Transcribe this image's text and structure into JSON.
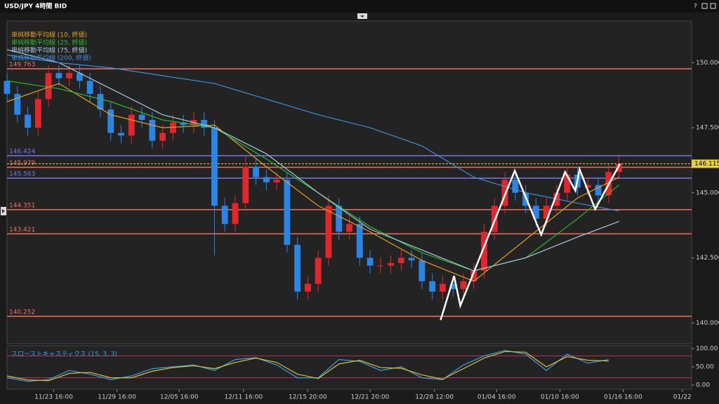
{
  "window": {
    "title": "USD/JPY 4時間 BID"
  },
  "chart_data": [
    {
      "type": "candlestick",
      "xlim": [
        0,
        66
      ],
      "ylim": [
        139.2,
        151.6
      ],
      "yticks": [
        {
          "value": 150,
          "label": "150.000"
        },
        {
          "value": 147.5,
          "label": "147.500"
        },
        {
          "value": 145,
          "label": "145.000"
        },
        {
          "value": 142.5,
          "label": "142.500"
        },
        {
          "value": 140,
          "label": "140.000"
        }
      ],
      "xticks": [
        {
          "value": 4.5,
          "label": "11/23 16:00"
        },
        {
          "value": 10.6,
          "label": "11/29 16:00"
        },
        {
          "value": 16.6,
          "label": "12/05 16:00"
        },
        {
          "value": 22.8,
          "label": "12/11 16:00"
        },
        {
          "value": 29,
          "label": "12/15 20:00"
        },
        {
          "value": 35,
          "label": "12/21 20:00"
        },
        {
          "value": 41.2,
          "label": "12/28 12:00"
        },
        {
          "value": 47.2,
          "label": "01/04 16:00"
        },
        {
          "value": 53.3,
          "label": "01/10 16:00"
        },
        {
          "value": 59.4,
          "label": "01/16 16:00"
        },
        {
          "value": 65.1,
          "label": "01/22"
        }
      ],
      "up_color": "#e3262c",
      "down_color": "#2a86e6",
      "open": [
        149.3,
        148.8,
        148.0,
        147.5,
        148.6,
        149.6,
        149.4,
        149.6,
        149.3,
        148.8,
        148.2,
        147.3,
        147.2,
        148.0,
        147.8,
        147.0,
        147.3,
        147.7,
        147.6,
        147.8,
        147.5,
        144.5,
        143.8,
        144.6,
        146.0,
        145.6,
        145.4,
        145.5,
        143.0,
        141.2,
        141.5,
        142.5,
        144.5,
        143.5,
        143.8,
        142.5,
        142.2,
        142.2,
        142.3,
        142.5,
        142.4,
        141.6,
        141.2,
        141.5,
        141.3,
        141.6,
        142.0,
        143.5,
        144.5,
        145.5,
        145.0,
        144.5,
        144.0,
        144.5,
        145.0,
        145.7,
        145.2,
        145.3,
        144.9,
        145.8
      ],
      "high": [
        149.6,
        149.1,
        148.3,
        148.9,
        149.9,
        149.9,
        149.9,
        149.9,
        149.6,
        149.1,
        148.5,
        147.6,
        148.3,
        148.3,
        148.1,
        147.6,
        148.0,
        148.0,
        148.1,
        148.1,
        147.8,
        144.8,
        144.9,
        146.4,
        146.3,
        145.9,
        145.8,
        145.8,
        143.3,
        141.8,
        142.8,
        144.9,
        144.8,
        144.1,
        144.1,
        142.8,
        142.5,
        142.6,
        142.8,
        142.8,
        142.7,
        141.9,
        141.8,
        141.8,
        141.9,
        142.3,
        143.8,
        144.8,
        145.8,
        145.8,
        145.3,
        144.8,
        144.8,
        145.3,
        146.0,
        146.0,
        145.6,
        145.6,
        146.1,
        146.4
      ],
      "low": [
        148.5,
        147.7,
        147.2,
        147.2,
        148.3,
        149.1,
        149.1,
        149.0,
        148.5,
        147.9,
        147.0,
        146.9,
        146.9,
        147.5,
        146.7,
        146.7,
        147.0,
        147.3,
        147.3,
        147.2,
        142.6,
        143.5,
        143.5,
        144.3,
        145.3,
        145.1,
        145.1,
        142.7,
        140.9,
        140.9,
        141.2,
        142.2,
        143.2,
        143.2,
        142.2,
        141.9,
        141.9,
        141.9,
        142.0,
        142.1,
        141.3,
        140.9,
        140.9,
        141.0,
        141.0,
        141.3,
        141.7,
        143.2,
        144.2,
        144.7,
        144.2,
        143.7,
        143.7,
        144.2,
        144.7,
        144.9,
        144.9,
        144.6,
        144.6,
        145.5
      ],
      "close": [
        148.8,
        148.0,
        147.5,
        148.6,
        149.6,
        149.4,
        149.6,
        149.3,
        148.8,
        148.2,
        147.3,
        147.2,
        148.0,
        147.8,
        147.0,
        147.3,
        147.7,
        147.6,
        147.8,
        147.5,
        144.5,
        143.8,
        144.6,
        146.0,
        145.6,
        145.4,
        145.5,
        143.0,
        141.2,
        141.5,
        142.5,
        144.5,
        143.5,
        143.8,
        142.5,
        142.2,
        142.2,
        142.3,
        142.5,
        142.4,
        141.6,
        141.2,
        141.5,
        141.3,
        141.6,
        142.0,
        143.5,
        144.5,
        145.5,
        145.0,
        144.5,
        144.0,
        144.5,
        145.0,
        145.7,
        145.2,
        145.3,
        144.9,
        145.8,
        146.1
      ],
      "series": [
        {
          "name": "単純移動平均線 (10, 終値)",
          "color": "#e0a020",
          "x": [
            0,
            5,
            10,
            15,
            20,
            25,
            30,
            35,
            40,
            45,
            50,
            55,
            59
          ],
          "values": [
            148.5,
            149.2,
            148.0,
            147.5,
            147.6,
            146.0,
            144.5,
            143.5,
            142.4,
            141.6,
            143.2,
            144.8,
            145.6
          ]
        },
        {
          "name": "単純移動平均線 (25, 終値)",
          "color": "#2fb82f",
          "x": [
            0,
            5,
            10,
            15,
            20,
            25,
            30,
            35,
            40,
            45,
            50,
            55,
            59
          ],
          "values": [
            149.3,
            149.0,
            148.5,
            147.8,
            147.5,
            146.3,
            145.0,
            143.7,
            142.7,
            142.0,
            142.5,
            144.0,
            145.3
          ]
        },
        {
          "name": "単純移動平均線 (75, 終値)",
          "color": "#a9c8e0",
          "x": [
            0,
            5,
            10,
            15,
            20,
            25,
            30,
            35,
            40,
            45,
            50,
            55,
            59
          ],
          "values": [
            150.5,
            150.0,
            149.0,
            148.0,
            147.5,
            146.5,
            145.0,
            143.6,
            142.8,
            142.0,
            142.5,
            143.3,
            143.9
          ]
        },
        {
          "name": "単純移動平均線 (200, 終値)",
          "color": "#3f8fd6",
          "x": [
            0,
            5,
            10,
            15,
            20,
            25,
            30,
            35,
            40,
            45,
            50,
            55,
            59
          ],
          "values": [
            150.3,
            150.0,
            149.8,
            149.5,
            149.2,
            148.6,
            148.0,
            147.5,
            146.8,
            145.6,
            145.0,
            144.6,
            144.3
          ]
        }
      ],
      "levels": [
        {
          "value": 149.763,
          "color": "#f07060"
        },
        {
          "value": 146.424,
          "color": "#7878e8"
        },
        {
          "value": 145.979,
          "color": "#f07060"
        },
        {
          "value": 145.563,
          "color": "#7878e8"
        },
        {
          "value": 144.351,
          "color": "#f07060"
        },
        {
          "value": 143.421,
          "color": "#f07060"
        },
        {
          "value": 140.252,
          "color": "#f07060"
        }
      ],
      "current_price": {
        "value": 146.115,
        "color": "#e8d040"
      },
      "annotation_line": {
        "color": "#ffffff",
        "x": [
          41.8,
          43.1,
          43.7,
          48.95,
          51.5,
          53.8,
          54.8,
          55.2,
          56.7,
          59.1
        ],
        "values": [
          140.11,
          141.8,
          140.66,
          145.85,
          143.39,
          145.8,
          145.08,
          145.9,
          144.37,
          146.12
        ]
      }
    },
    {
      "type": "line",
      "title": "スローストキャスティクス (15, 3, 3)",
      "xlim": [
        0,
        66
      ],
      "ylim": [
        -11.5,
        107.7
      ],
      "yticks": [
        {
          "value": 100,
          "label": "100.00"
        },
        {
          "value": 50,
          "label": "50.00"
        },
        {
          "value": 0,
          "label": "0.00"
        }
      ],
      "levels": [
        {
          "value": 80,
          "color": "#c0306a"
        },
        {
          "value": 20,
          "color": "#c0306a"
        }
      ],
      "series": [
        {
          "color": "#3aa0e8",
          "x": [
            0,
            2,
            4,
            6,
            8,
            10,
            12,
            14,
            16,
            18,
            20,
            22,
            24,
            26,
            28,
            30,
            32,
            34,
            36,
            38,
            40,
            42,
            44,
            46,
            48,
            50,
            52,
            54,
            56,
            58
          ],
          "values": [
            20,
            10,
            15,
            40,
            30,
            15,
            25,
            45,
            50,
            55,
            40,
            70,
            75,
            55,
            20,
            20,
            70,
            65,
            40,
            50,
            20,
            15,
            55,
            80,
            95,
            85,
            40,
            85,
            60,
            70
          ]
        },
        {
          "color": "#e0c030",
          "x": [
            0,
            2,
            4,
            6,
            8,
            10,
            12,
            14,
            16,
            18,
            20,
            22,
            24,
            26,
            28,
            30,
            32,
            34,
            36,
            38,
            40,
            42,
            44,
            46,
            48,
            50,
            52,
            54,
            56,
            58
          ],
          "values": [
            25,
            14,
            12,
            32,
            35,
            20,
            20,
            38,
            48,
            53,
            45,
            62,
            74,
            62,
            30,
            18,
            58,
            68,
            48,
            46,
            28,
            16,
            45,
            74,
            92,
            90,
            50,
            78,
            68,
            66
          ]
        }
      ]
    }
  ]
}
